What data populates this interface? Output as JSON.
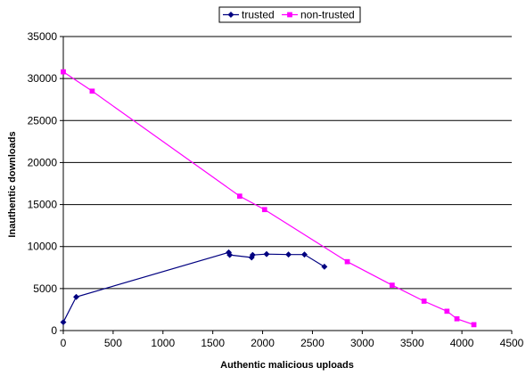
{
  "chart_data": {
    "type": "line",
    "title": "",
    "xlabel": "Authentic malicious uploads",
    "ylabel": "Inauthentic downloads",
    "xlim": [
      0,
      4500
    ],
    "ylim": [
      0,
      35000
    ],
    "x_ticks": [
      0,
      500,
      1000,
      1500,
      2000,
      2500,
      3000,
      3500,
      4000,
      4500
    ],
    "y_ticks": [
      0,
      5000,
      10000,
      15000,
      20000,
      25000,
      30000,
      35000
    ],
    "grid": "horizontal",
    "legend_position": "top",
    "series": [
      {
        "name": "trusted",
        "color": "#000080",
        "marker": "diamond",
        "points": [
          {
            "x": 0,
            "y": 1000
          },
          {
            "x": 130,
            "y": 4000
          },
          {
            "x": 1660,
            "y": 9300
          },
          {
            "x": 1670,
            "y": 9000
          },
          {
            "x": 1890,
            "y": 8700
          },
          {
            "x": 1900,
            "y": 9000
          },
          {
            "x": 2040,
            "y": 9100
          },
          {
            "x": 2260,
            "y": 9050
          },
          {
            "x": 2420,
            "y": 9050
          },
          {
            "x": 2620,
            "y": 7600
          }
        ]
      },
      {
        "name": "non-trusted",
        "color": "#FF00FF",
        "marker": "square",
        "points": [
          {
            "x": 0,
            "y": 30800
          },
          {
            "x": 290,
            "y": 28500
          },
          {
            "x": 1770,
            "y": 16000
          },
          {
            "x": 2020,
            "y": 14400
          },
          {
            "x": 2850,
            "y": 8200
          },
          {
            "x": 3300,
            "y": 5400
          },
          {
            "x": 3620,
            "y": 3500
          },
          {
            "x": 3850,
            "y": 2300
          },
          {
            "x": 3950,
            "y": 1400
          },
          {
            "x": 4120,
            "y": 700
          }
        ]
      }
    ]
  }
}
